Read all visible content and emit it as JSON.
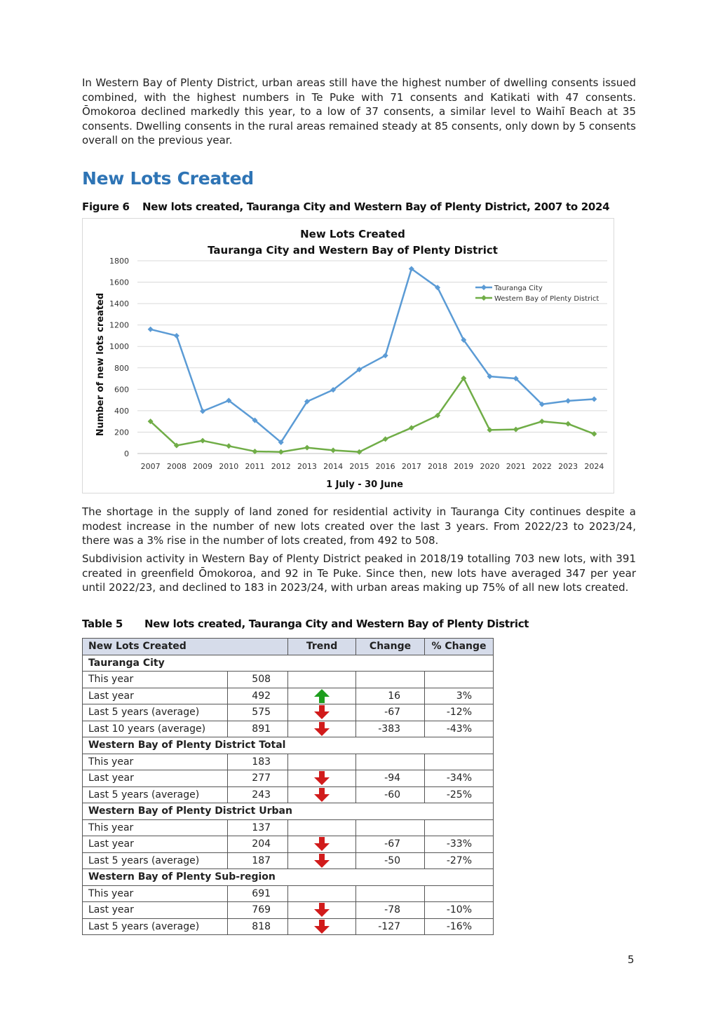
{
  "intro_paragraph": "In Western Bay of Plenty District, urban areas still have the highest number of dwelling consents issued combined, with the highest numbers in Te Puke with 71 consents and Katikati with 47 consents. Ōmokoroa declined markedly this year, to a low of 37 consents, a similar level to Waihī Beach at 35 consents. Dwelling consents in the rural areas remained steady at 85 consents, only down by 5 consents overall on the previous year.",
  "section_heading": "New Lots Created",
  "figure_caption": {
    "id": "Figure 6",
    "text": "New lots created, Tauranga City and Western Bay of Plenty District, 2007 to 2024"
  },
  "chart_data": {
    "type": "line",
    "title": "New Lots Created",
    "subtitle": "Tauranga City and Western Bay of Plenty District",
    "xlabel": "1 July - 30 June",
    "ylabel": "Number of new lots created",
    "ylim": [
      0,
      1800
    ],
    "yticks": [
      0,
      200,
      400,
      600,
      800,
      1000,
      1200,
      1400,
      1600,
      1800
    ],
    "grid": true,
    "legend": "top-right",
    "categories": [
      "2007",
      "2008",
      "2009",
      "2010",
      "2011",
      "2012",
      "2013",
      "2014",
      "2015",
      "2016",
      "2017",
      "2018",
      "2019",
      "2020",
      "2021",
      "2022",
      "2023",
      "2024"
    ],
    "series": [
      {
        "name": "Tauranga City",
        "color": "#5b9bd5",
        "values": [
          1160,
          1100,
          395,
          495,
          310,
          105,
          485,
          595,
          785,
          915,
          1725,
          1550,
          1060,
          720,
          700,
          460,
          492,
          508
        ]
      },
      {
        "name": "Western Bay of Plenty District",
        "color": "#70ad47",
        "values": [
          300,
          75,
          120,
          70,
          20,
          15,
          55,
          30,
          15,
          135,
          240,
          355,
          703,
          220,
          225,
          300,
          277,
          183
        ]
      }
    ]
  },
  "paragraph_2": "The shortage in the supply of land zoned for residential activity in Tauranga City continues despite a modest increase in the number of new lots created over the last 3 years. From 2022/23 to 2023/24, there was a 3% rise in the number of lots created, from 492 to 508.",
  "paragraph_3": "Subdivision activity in Western Bay of Plenty District peaked in 2018/19 totalling 703 new lots, with 391 created in greenfield Ōmokoroa, and 92 in Te Puke. Since then, new lots have averaged 347 per year until 2022/23, and declined to 183 in 2023/24, with urban areas making up 75% of all new lots created.",
  "table_caption": {
    "id": "Table 5",
    "text": "New lots created, Tauranga City and Western Bay of Plenty District"
  },
  "table": {
    "headers": [
      "New Lots Created",
      "Trend",
      "Change",
      "% Change"
    ],
    "sections": [
      {
        "title": "Tauranga City",
        "rows": [
          {
            "label": "This year",
            "value": "508",
            "trend": "",
            "change": "",
            "pct": ""
          },
          {
            "label": "Last year",
            "value": "492",
            "trend": "up",
            "change": "16",
            "pct": "3%"
          },
          {
            "label": "Last 5 years (average)",
            "value": "575",
            "trend": "down",
            "change": "-67",
            "pct": "-12%"
          },
          {
            "label": "Last 10 years (average)",
            "value": "891",
            "trend": "down",
            "change": "-383",
            "pct": "-43%"
          }
        ]
      },
      {
        "title": "Western Bay of Plenty District Total",
        "rows": [
          {
            "label": "This year",
            "value": "183",
            "trend": "",
            "change": "",
            "pct": ""
          },
          {
            "label": "Last year",
            "value": "277",
            "trend": "down",
            "change": "-94",
            "pct": "-34%"
          },
          {
            "label": "Last 5 years (average)",
            "value": "243",
            "trend": "down",
            "change": "-60",
            "pct": "-25%"
          }
        ]
      },
      {
        "title": "Western Bay of Plenty District Urban",
        "rows": [
          {
            "label": "This year",
            "value": "137",
            "trend": "",
            "change": "",
            "pct": ""
          },
          {
            "label": "Last year",
            "value": "204",
            "trend": "down",
            "change": "-67",
            "pct": "-33%"
          },
          {
            "label": "Last 5 years (average)",
            "value": "187",
            "trend": "down",
            "change": "-50",
            "pct": "-27%"
          }
        ]
      },
      {
        "title": "Western Bay of Plenty Sub-region",
        "rows": [
          {
            "label": "This year",
            "value": "691",
            "trend": "",
            "change": "",
            "pct": ""
          },
          {
            "label": "Last year",
            "value": "769",
            "trend": "down",
            "change": "-78",
            "pct": "-10%"
          },
          {
            "label": "Last 5 years (average)",
            "value": "818",
            "trend": "down",
            "change": "-127",
            "pct": "-16%"
          }
        ]
      }
    ],
    "trend_colors": {
      "up": "#1e9e1e",
      "down": "#d11b1b"
    }
  },
  "page_number": "5"
}
